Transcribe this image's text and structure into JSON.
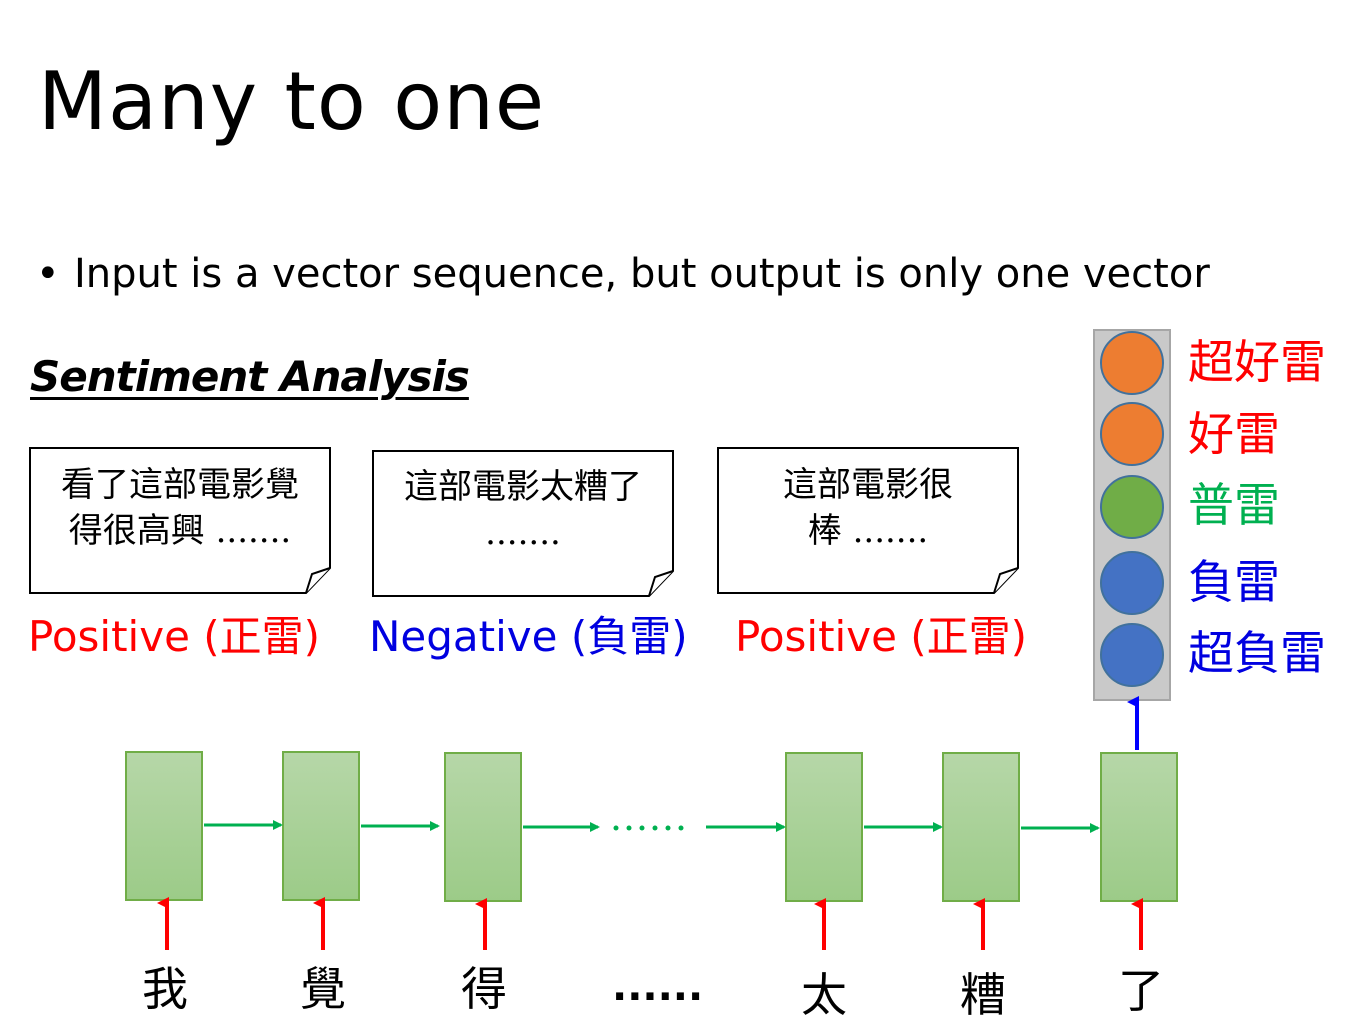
{
  "title": "Many to one",
  "bullet": {
    "symbol": "•",
    "text": "Input is a vector sequence, but output is only one vector"
  },
  "subheading": "Sentiment Analysis",
  "reviews": [
    {
      "line1": "看了這部電影覺",
      "line2": "得很高興 ......."
    },
    {
      "line1": "這部電影太糟了",
      "line2": "......."
    },
    {
      "line1": "這部電影很",
      "line2": "棒 ......."
    }
  ],
  "sentiments": [
    {
      "label": "Positive (正雷)",
      "color": "#ff0000"
    },
    {
      "label": "Negative (負雷)",
      "color": "#0000e0"
    },
    {
      "label": "Positive (正雷)",
      "color": "#ff0000"
    }
  ],
  "output_classes": [
    {
      "label": "超好雷",
      "text_color": "#ff0000",
      "circle_color": "#ed7d31"
    },
    {
      "label": "好雷",
      "text_color": "#ff0000",
      "circle_color": "#ed7d31"
    },
    {
      "label": "普雷",
      "text_color": "#00b050",
      "circle_color": "#70ad47"
    },
    {
      "label": "負雷",
      "text_color": "#0000e0",
      "circle_color": "#4472c4"
    },
    {
      "label": "超負雷",
      "text_color": "#0000e0",
      "circle_color": "#4472c4"
    }
  ],
  "tokens": [
    "我",
    "覺",
    "得",
    "太",
    "糟",
    "了"
  ],
  "ellipsis": "......",
  "colors": {
    "cell_fill_top": "#b6d7a8",
    "cell_fill_bottom": "#9ccb88",
    "cell_border": "#70ad47",
    "recurrent_arrow": "#00b050",
    "input_arrow": "#ff0000",
    "output_arrow": "#0000ff",
    "output_panel": "#c9c9c9"
  }
}
